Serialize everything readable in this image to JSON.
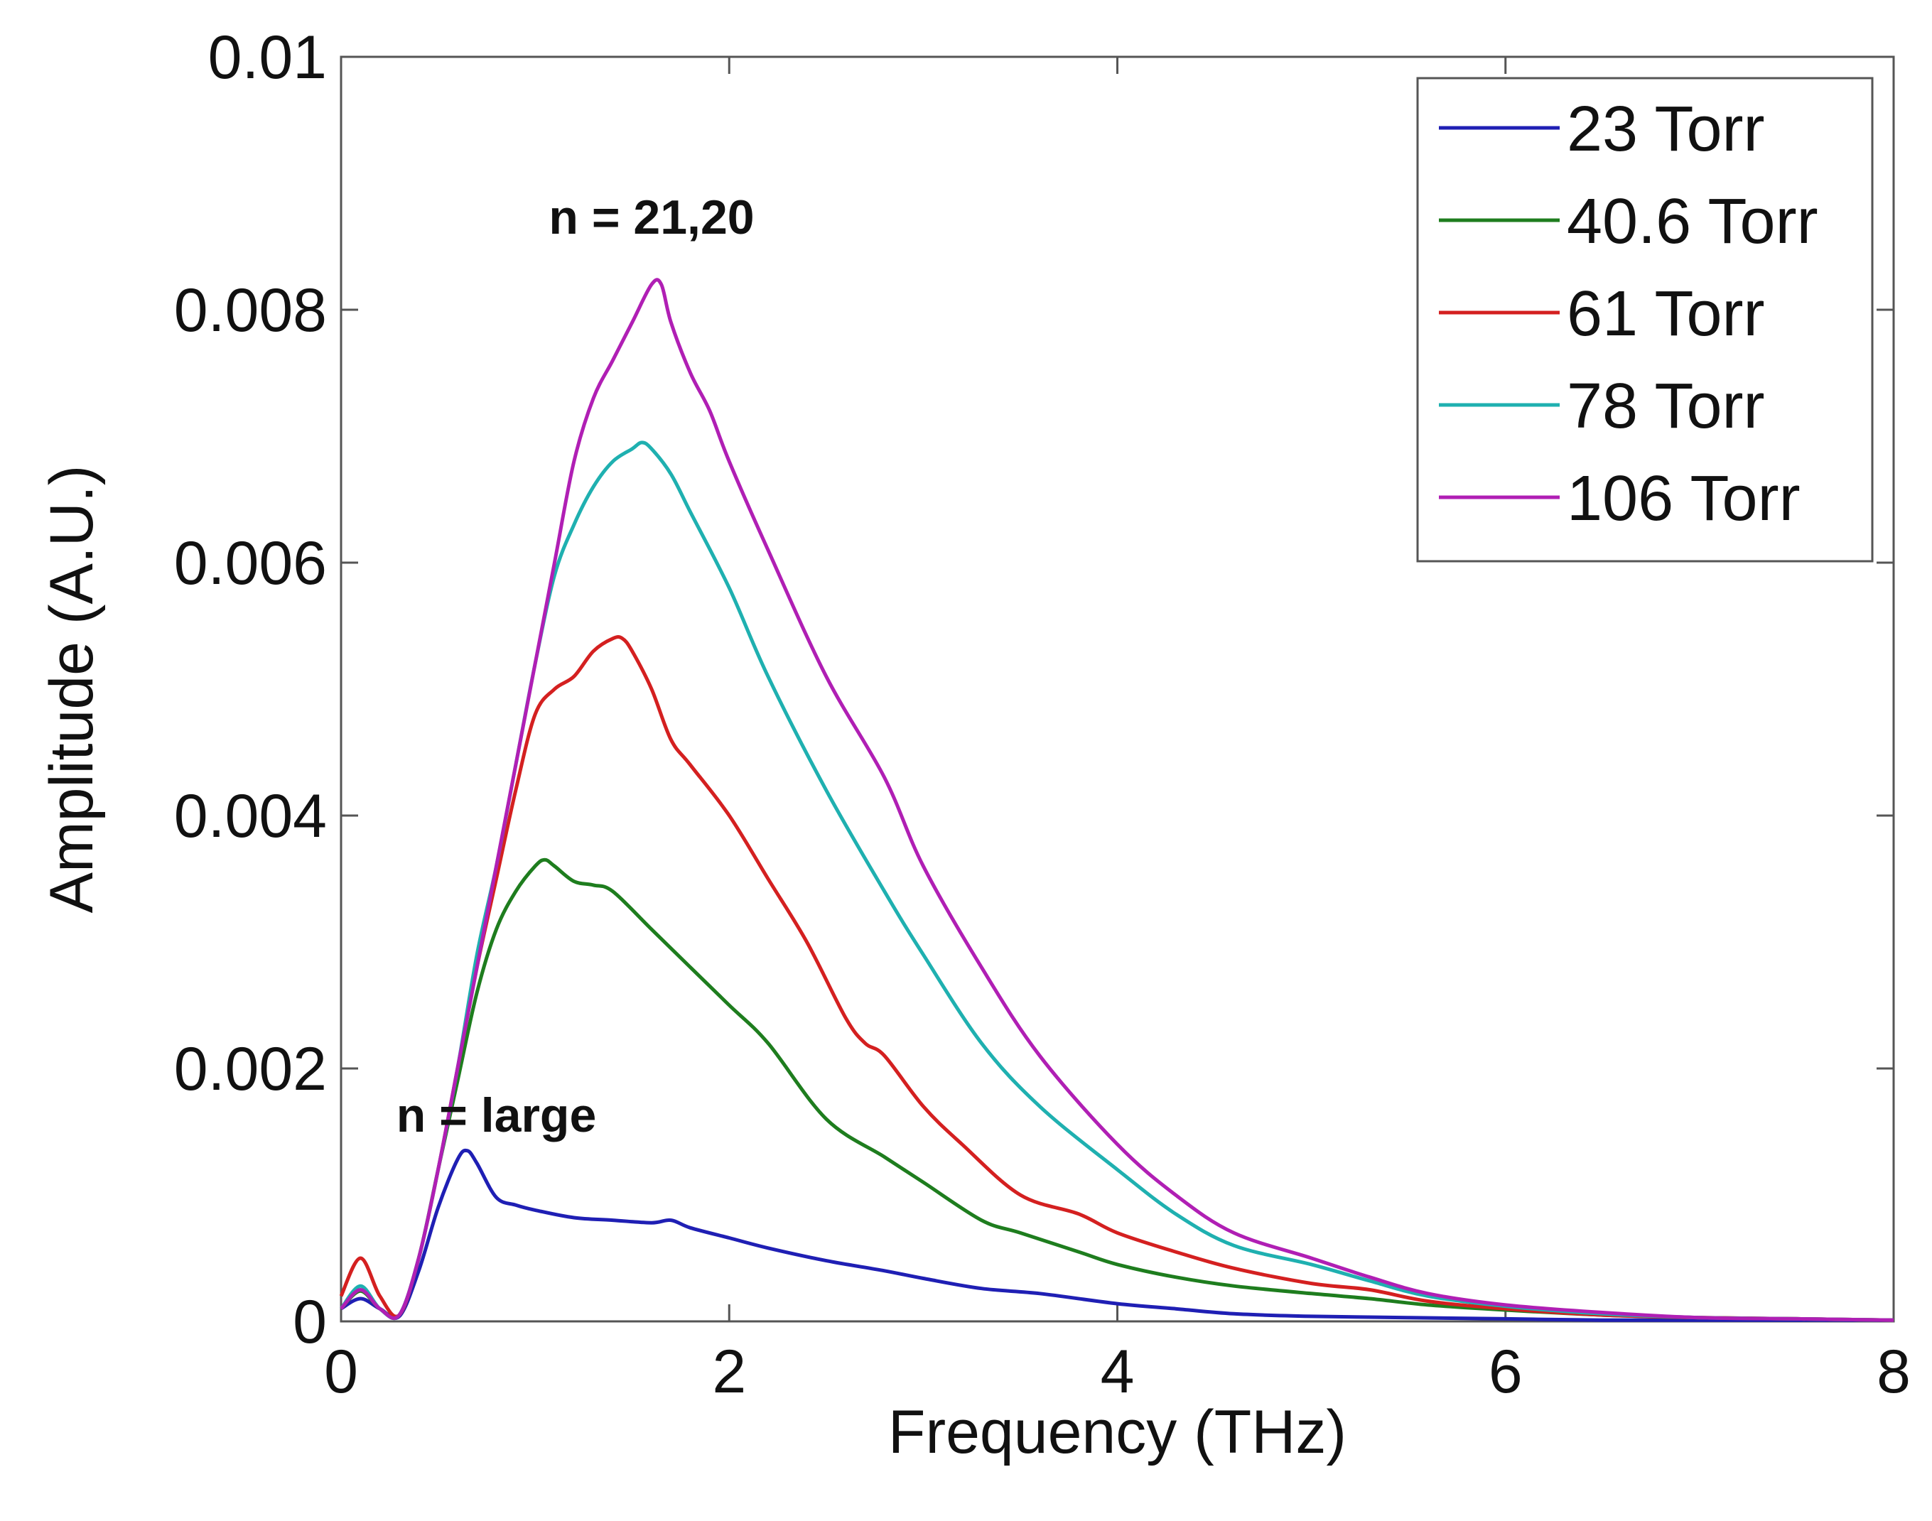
{
  "chart_data": {
    "type": "line",
    "title": "",
    "xlabel": "Frequency (THz)",
    "ylabel": "Amplitude (A.U.)",
    "xlim": [
      0,
      8
    ],
    "ylim": [
      0,
      0.01
    ],
    "xticks": [
      0,
      2,
      4,
      6,
      8
    ],
    "xtick_labels": [
      "0",
      "2",
      "4",
      "6",
      "8"
    ],
    "yticks": [
      0,
      0.002,
      0.004,
      0.006,
      0.008,
      0.01
    ],
    "ytick_labels": [
      "0",
      "0.002",
      "0.004",
      "0.006",
      "0.008",
      "0.01"
    ],
    "grid": false,
    "legend_position": "top-right",
    "annotations": [
      {
        "text": "n = 21,20",
        "x": 1.6,
        "y": 0.0086
      },
      {
        "text": "n = large",
        "x": 0.8,
        "y": 0.0015
      }
    ],
    "series": [
      {
        "name": "23 Torr",
        "color": "#1f1fb4",
        "x": [
          0,
          0.1,
          0.2,
          0.3,
          0.4,
          0.5,
          0.6,
          0.65,
          0.7,
          0.8,
          0.9,
          1.0,
          1.2,
          1.4,
          1.6,
          1.7,
          1.8,
          2.0,
          2.2,
          2.5,
          2.8,
          3.0,
          3.3,
          3.6,
          4.0,
          4.3,
          4.6,
          5.0,
          5.5,
          6.0,
          6.5,
          7.0,
          7.5,
          8.0
        ],
        "y": [
          0.0001,
          0.00018,
          0.0001,
          4e-05,
          0.0004,
          0.0009,
          0.00128,
          0.00135,
          0.00125,
          0.00098,
          0.00092,
          0.00088,
          0.00082,
          0.0008,
          0.00078,
          0.0008,
          0.00074,
          0.00066,
          0.00058,
          0.00048,
          0.0004,
          0.00034,
          0.00026,
          0.00022,
          0.00014,
          0.0001,
          6e-05,
          4e-05,
          3e-05,
          2e-05,
          1e-05,
          1e-05,
          1e-05,
          1e-05
        ]
      },
      {
        "name": "40.6 Torr",
        "color": "#1e7d1e",
        "x": [
          0,
          0.1,
          0.2,
          0.3,
          0.4,
          0.5,
          0.6,
          0.7,
          0.8,
          0.9,
          1.0,
          1.05,
          1.1,
          1.2,
          1.3,
          1.4,
          1.6,
          1.8,
          2.0,
          2.2,
          2.5,
          2.8,
          3.0,
          3.3,
          3.5,
          3.8,
          4.0,
          4.3,
          4.6,
          5.0,
          5.3,
          5.6,
          6.0,
          6.5,
          7.0,
          7.5,
          8.0
        ],
        "y": [
          0.0001,
          0.00024,
          0.0001,
          5e-05,
          0.0005,
          0.0012,
          0.0019,
          0.0026,
          0.0031,
          0.0034,
          0.0036,
          0.00365,
          0.0036,
          0.00348,
          0.00345,
          0.0034,
          0.0031,
          0.0028,
          0.0025,
          0.0022,
          0.0016,
          0.0013,
          0.0011,
          0.0008,
          0.0007,
          0.00055,
          0.00045,
          0.00035,
          0.00028,
          0.00022,
          0.00018,
          0.00013,
          9e-05,
          5e-05,
          3e-05,
          2e-05,
          1e-05
        ]
      },
      {
        "name": "61 Torr",
        "color": "#d42020",
        "x": [
          0,
          0.1,
          0.2,
          0.3,
          0.4,
          0.5,
          0.6,
          0.7,
          0.8,
          0.9,
          1.0,
          1.1,
          1.2,
          1.3,
          1.4,
          1.45,
          1.5,
          1.6,
          1.7,
          1.8,
          2.0,
          2.2,
          2.4,
          2.6,
          2.7,
          2.8,
          3.0,
          3.2,
          3.5,
          3.8,
          4.0,
          4.3,
          4.6,
          5.0,
          5.3,
          5.6,
          6.0,
          6.5,
          7.0,
          7.5,
          8.0
        ],
        "y": [
          0.0002,
          0.0005,
          0.0002,
          5e-05,
          0.0005,
          0.0012,
          0.002,
          0.0028,
          0.0035,
          0.0042,
          0.0048,
          0.005,
          0.0051,
          0.0053,
          0.0054,
          0.0054,
          0.0053,
          0.005,
          0.0046,
          0.0044,
          0.004,
          0.0035,
          0.003,
          0.0024,
          0.0022,
          0.0021,
          0.0017,
          0.0014,
          0.001,
          0.00085,
          0.0007,
          0.00055,
          0.00042,
          0.0003,
          0.00025,
          0.00016,
          0.0001,
          5e-05,
          3e-05,
          2e-05,
          1e-05
        ]
      },
      {
        "name": "78 Torr",
        "color": "#1fb0b0",
        "x": [
          0,
          0.1,
          0.2,
          0.3,
          0.4,
          0.5,
          0.6,
          0.7,
          0.8,
          0.9,
          1.0,
          1.1,
          1.2,
          1.3,
          1.4,
          1.5,
          1.55,
          1.6,
          1.7,
          1.8,
          2.0,
          2.2,
          2.5,
          2.8,
          3.0,
          3.3,
          3.6,
          4.0,
          4.3,
          4.6,
          5.0,
          5.3,
          5.6,
          6.0,
          6.5,
          7.0,
          7.5,
          8.0
        ],
        "y": [
          0.0001,
          0.00028,
          0.0001,
          5e-05,
          0.0005,
          0.0012,
          0.002,
          0.0029,
          0.0036,
          0.0044,
          0.0052,
          0.0059,
          0.0063,
          0.0066,
          0.0068,
          0.0069,
          0.00695,
          0.0069,
          0.0067,
          0.0064,
          0.0058,
          0.0051,
          0.0042,
          0.0034,
          0.0029,
          0.0022,
          0.0017,
          0.0012,
          0.00085,
          0.0006,
          0.00045,
          0.00032,
          0.0002,
          0.00012,
          6e-05,
          3e-05,
          2e-05,
          1e-05
        ]
      },
      {
        "name": "106 Torr",
        "color": "#b01fb4",
        "x": [
          0,
          0.1,
          0.2,
          0.3,
          0.4,
          0.5,
          0.6,
          0.7,
          0.8,
          0.9,
          1.0,
          1.1,
          1.2,
          1.3,
          1.4,
          1.5,
          1.6,
          1.65,
          1.7,
          1.8,
          1.9,
          2.0,
          2.2,
          2.5,
          2.8,
          3.0,
          3.3,
          3.6,
          4.0,
          4.3,
          4.6,
          5.0,
          5.3,
          5.6,
          6.0,
          6.5,
          7.0,
          7.5,
          8.0
        ],
        "y": [
          0.0001,
          0.00025,
          0.0001,
          5e-05,
          0.0005,
          0.0012,
          0.002,
          0.0028,
          0.0036,
          0.0044,
          0.0052,
          0.006,
          0.0068,
          0.0073,
          0.0076,
          0.0079,
          0.0082,
          0.0082,
          0.0079,
          0.0075,
          0.0072,
          0.0068,
          0.0061,
          0.0051,
          0.0043,
          0.0036,
          0.0028,
          0.0021,
          0.0014,
          0.001,
          0.0007,
          0.0005,
          0.00035,
          0.00022,
          0.00013,
          7e-05,
          3e-05,
          2e-05,
          1e-05
        ]
      }
    ]
  }
}
